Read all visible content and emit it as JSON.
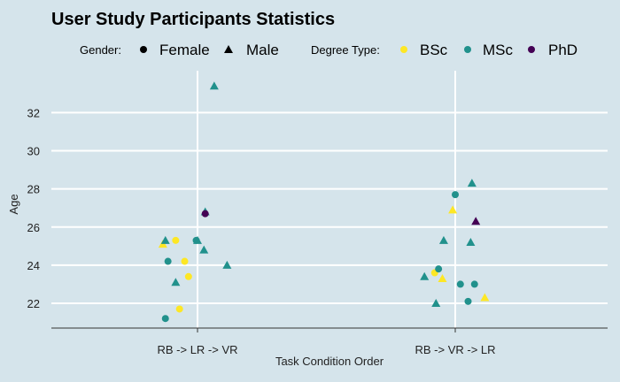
{
  "chart_data": {
    "type": "scatter",
    "title": "User Study Participants Statistics",
    "xlabel": "Task Condition Order",
    "ylabel": "Age",
    "categories": [
      "RB -> LR -> VR",
      "RB -> VR -> LR"
    ],
    "ylim": [
      20.7,
      34.2
    ],
    "yticks": [
      22,
      24,
      26,
      28,
      30,
      32
    ],
    "grid": true,
    "legend": {
      "placement": "top",
      "gender_title": "Gender:",
      "gender": [
        {
          "label": "Female",
          "shape": "circle"
        },
        {
          "label": "Male",
          "shape": "triangle"
        }
      ],
      "degree_title": "Degree Type:",
      "degree": [
        {
          "label": "BSc",
          "color": "#fde725"
        },
        {
          "label": "MSc",
          "color": "#21918c"
        },
        {
          "label": "PhD",
          "color": "#440154"
        }
      ]
    },
    "points": [
      {
        "group": "RB -> LR -> VR",
        "jitter": -0.27,
        "age": 25.1,
        "gender": "Male",
        "degree": "BSc"
      },
      {
        "group": "RB -> LR -> VR",
        "jitter": -0.25,
        "age": 25.3,
        "gender": "Male",
        "degree": "MSc"
      },
      {
        "group": "RB -> LR -> VR",
        "jitter": -0.23,
        "age": 24.2,
        "gender": "Female",
        "degree": "MSc"
      },
      {
        "group": "RB -> LR -> VR",
        "jitter": -0.25,
        "age": 21.2,
        "gender": "Female",
        "degree": "MSc"
      },
      {
        "group": "RB -> LR -> VR",
        "jitter": -0.17,
        "age": 25.3,
        "gender": "Female",
        "degree": "BSc"
      },
      {
        "group": "RB -> LR -> VR",
        "jitter": -0.17,
        "age": 23.1,
        "gender": "Male",
        "degree": "MSc"
      },
      {
        "group": "RB -> LR -> VR",
        "jitter": -0.14,
        "age": 21.7,
        "gender": "Female",
        "degree": "BSc"
      },
      {
        "group": "RB -> LR -> VR",
        "jitter": -0.1,
        "age": 24.2,
        "gender": "Female",
        "degree": "BSc"
      },
      {
        "group": "RB -> LR -> VR",
        "jitter": -0.07,
        "age": 23.4,
        "gender": "Female",
        "degree": "BSc"
      },
      {
        "group": "RB -> LR -> VR",
        "jitter": -0.01,
        "age": 25.3,
        "gender": "Female",
        "degree": "MSc"
      },
      {
        "group": "RB -> LR -> VR",
        "jitter": 0.0,
        "age": 25.3,
        "gender": "Male",
        "degree": "MSc"
      },
      {
        "group": "RB -> LR -> VR",
        "jitter": 0.05,
        "age": 24.8,
        "gender": "Male",
        "degree": "MSc"
      },
      {
        "group": "RB -> LR -> VR",
        "jitter": 0.06,
        "age": 26.8,
        "gender": "Male",
        "degree": "MSc"
      },
      {
        "group": "RB -> LR -> VR",
        "jitter": 0.06,
        "age": 26.7,
        "gender": "Female",
        "degree": "PhD"
      },
      {
        "group": "RB -> LR -> VR",
        "jitter": 0.13,
        "age": 33.4,
        "gender": "Male",
        "degree": "MSc"
      },
      {
        "group": "RB -> LR -> VR",
        "jitter": 0.23,
        "age": 24.0,
        "gender": "Male",
        "degree": "MSc"
      },
      {
        "group": "RB -> VR -> LR",
        "jitter": -0.24,
        "age": 23.4,
        "gender": "Male",
        "degree": "MSc"
      },
      {
        "group": "RB -> VR -> LR",
        "jitter": -0.16,
        "age": 23.6,
        "gender": "Female",
        "degree": "BSc"
      },
      {
        "group": "RB -> VR -> LR",
        "jitter": -0.15,
        "age": 22.0,
        "gender": "Male",
        "degree": "MSc"
      },
      {
        "group": "RB -> VR -> LR",
        "jitter": -0.13,
        "age": 23.8,
        "gender": "Female",
        "degree": "MSc"
      },
      {
        "group": "RB -> VR -> LR",
        "jitter": -0.1,
        "age": 23.3,
        "gender": "Male",
        "degree": "BSc"
      },
      {
        "group": "RB -> VR -> LR",
        "jitter": -0.09,
        "age": 25.3,
        "gender": "Male",
        "degree": "MSc"
      },
      {
        "group": "RB -> VR -> LR",
        "jitter": -0.02,
        "age": 26.9,
        "gender": "Male",
        "degree": "BSc"
      },
      {
        "group": "RB -> VR -> LR",
        "jitter": 0.0,
        "age": 27.7,
        "gender": "Female",
        "degree": "MSc"
      },
      {
        "group": "RB -> VR -> LR",
        "jitter": 0.04,
        "age": 23.0,
        "gender": "Female",
        "degree": "MSc"
      },
      {
        "group": "RB -> VR -> LR",
        "jitter": 0.1,
        "age": 22.1,
        "gender": "Female",
        "degree": "MSc"
      },
      {
        "group": "RB -> VR -> LR",
        "jitter": 0.12,
        "age": 25.2,
        "gender": "Male",
        "degree": "MSc"
      },
      {
        "group": "RB -> VR -> LR",
        "jitter": 0.13,
        "age": 28.3,
        "gender": "Male",
        "degree": "MSc"
      },
      {
        "group": "RB -> VR -> LR",
        "jitter": 0.15,
        "age": 23.0,
        "gender": "Female",
        "degree": "MSc"
      },
      {
        "group": "RB -> VR -> LR",
        "jitter": 0.16,
        "age": 26.3,
        "gender": "Male",
        "degree": "PhD"
      },
      {
        "group": "RB -> VR -> LR",
        "jitter": 0.23,
        "age": 22.3,
        "gender": "Male",
        "degree": "BSc"
      }
    ]
  }
}
